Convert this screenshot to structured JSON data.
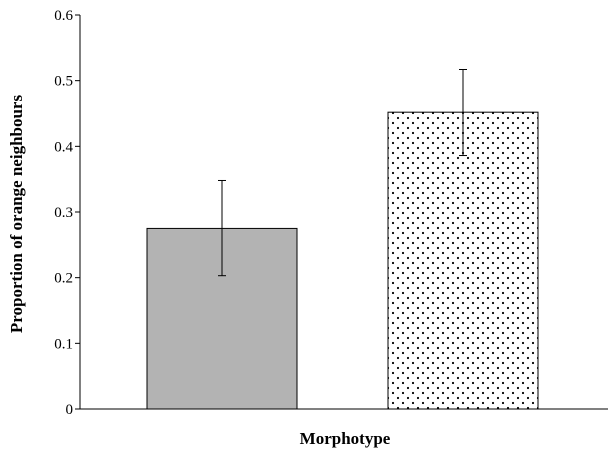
{
  "chart_data": {
    "type": "bar",
    "title": "",
    "xlabel": "Morphotype",
    "ylabel": "Proportion of orange neighbours",
    "ylim": [
      0,
      0.6
    ],
    "yticks": [
      0,
      0.1,
      0.2,
      0.3,
      0.4,
      0.5,
      0.6
    ],
    "ytick_labels": [
      "0",
      "0.1",
      "0.2",
      "0.3",
      "0.4",
      "0.5",
      "0.6"
    ],
    "categories": [
      "",
      ""
    ],
    "values": [
      0.275,
      0.452
    ],
    "error_bars": [
      {
        "lower": 0.203,
        "upper": 0.348
      },
      {
        "lower": 0.386,
        "upper": 0.517
      }
    ],
    "bar_styles": [
      {
        "fill": "#b3b3b3",
        "pattern": "solid"
      },
      {
        "fill": "#ffffff",
        "pattern": "dots"
      }
    ],
    "grid": false,
    "legend": "none"
  }
}
